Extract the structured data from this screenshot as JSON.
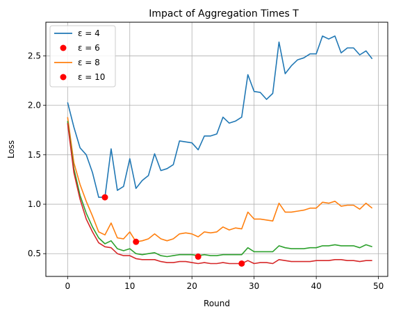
{
  "chart_data": {
    "type": "line",
    "title": "Impact of Aggregation Times T",
    "xlabel": "Round",
    "ylabel": "Loss",
    "xlim": [
      -3.5,
      51.5
    ],
    "ylim": [
      0.27,
      2.84
    ],
    "xticks": [
      0,
      10,
      20,
      30,
      40,
      50
    ],
    "yticks": [
      0.5,
      1.0,
      1.5,
      2.0,
      2.5
    ],
    "ytick_labels": [
      "0.5",
      "1.0",
      "1.5",
      "2.0",
      "2.5"
    ],
    "grid": true,
    "legend_position": "top-left",
    "legend": [
      {
        "label": "ε = 4",
        "kind": "line",
        "color": "#1f77b4"
      },
      {
        "label": "ε = 6",
        "kind": "marker",
        "color": "#ff0000"
      },
      {
        "label": "ε = 8",
        "kind": "line",
        "color": "#ff7f0e"
      },
      {
        "label": "ε = 10",
        "kind": "marker",
        "color": "#ff0000"
      }
    ],
    "x": [
      0,
      1,
      2,
      3,
      4,
      5,
      6,
      7,
      8,
      9,
      10,
      11,
      12,
      13,
      14,
      15,
      16,
      17,
      18,
      19,
      20,
      21,
      22,
      23,
      24,
      25,
      26,
      27,
      28,
      29,
      30,
      31,
      32,
      33,
      34,
      35,
      36,
      37,
      38,
      39,
      40,
      41,
      42,
      43,
      44,
      45,
      46,
      47,
      48,
      49
    ],
    "series": [
      {
        "color": "#1f77b4",
        "values": [
          2.03,
          1.78,
          1.57,
          1.5,
          1.32,
          1.07,
          1.07,
          1.56,
          1.14,
          1.18,
          1.46,
          1.16,
          1.24,
          1.29,
          1.51,
          1.34,
          1.36,
          1.4,
          1.64,
          1.63,
          1.62,
          1.55,
          1.69,
          1.69,
          1.71,
          1.88,
          1.82,
          1.84,
          1.88,
          2.31,
          2.14,
          2.13,
          2.06,
          2.12,
          2.64,
          2.32,
          2.4,
          2.46,
          2.48,
          2.52,
          2.52,
          2.7,
          2.67,
          2.7,
          2.53,
          2.58,
          2.58,
          2.51,
          2.55,
          2.47
        ]
      },
      {
        "color": "#ff7f0e",
        "values": [
          1.88,
          1.42,
          1.2,
          1.03,
          0.88,
          0.72,
          0.69,
          0.81,
          0.66,
          0.65,
          0.72,
          0.62,
          0.63,
          0.65,
          0.7,
          0.65,
          0.63,
          0.65,
          0.7,
          0.71,
          0.7,
          0.67,
          0.72,
          0.71,
          0.72,
          0.77,
          0.74,
          0.76,
          0.75,
          0.92,
          0.85,
          0.85,
          0.84,
          0.83,
          1.01,
          0.92,
          0.92,
          0.93,
          0.94,
          0.96,
          0.96,
          1.02,
          1.01,
          1.03,
          0.98,
          0.99,
          0.99,
          0.95,
          1.01,
          0.96
        ]
      },
      {
        "color": "#2ca02c",
        "values": [
          1.84,
          1.36,
          1.09,
          0.91,
          0.77,
          0.66,
          0.6,
          0.63,
          0.55,
          0.53,
          0.55,
          0.5,
          0.49,
          0.5,
          0.51,
          0.48,
          0.47,
          0.48,
          0.49,
          0.49,
          0.49,
          0.48,
          0.49,
          0.48,
          0.48,
          0.49,
          0.49,
          0.49,
          0.49,
          0.56,
          0.52,
          0.52,
          0.52,
          0.52,
          0.58,
          0.56,
          0.55,
          0.55,
          0.55,
          0.56,
          0.56,
          0.58,
          0.58,
          0.59,
          0.58,
          0.58,
          0.58,
          0.56,
          0.59,
          0.57
        ]
      },
      {
        "color": "#d62728",
        "values": [
          1.82,
          1.32,
          1.05,
          0.85,
          0.72,
          0.61,
          0.57,
          0.56,
          0.5,
          0.48,
          0.48,
          0.45,
          0.44,
          0.44,
          0.44,
          0.42,
          0.41,
          0.41,
          0.42,
          0.42,
          0.41,
          0.4,
          0.41,
          0.4,
          0.4,
          0.41,
          0.4,
          0.4,
          0.4,
          0.43,
          0.4,
          0.41,
          0.41,
          0.4,
          0.44,
          0.43,
          0.42,
          0.42,
          0.42,
          0.42,
          0.43,
          0.43,
          0.43,
          0.44,
          0.44,
          0.43,
          0.43,
          0.42,
          0.43,
          0.43
        ]
      }
    ],
    "markers": [
      {
        "x": 6,
        "y": 1.07,
        "color": "#ff0000"
      },
      {
        "x": 11,
        "y": 0.62,
        "color": "#ff0000"
      },
      {
        "x": 21,
        "y": 0.47,
        "color": "#ff0000"
      },
      {
        "x": 28,
        "y": 0.4,
        "color": "#ff0000"
      }
    ]
  }
}
